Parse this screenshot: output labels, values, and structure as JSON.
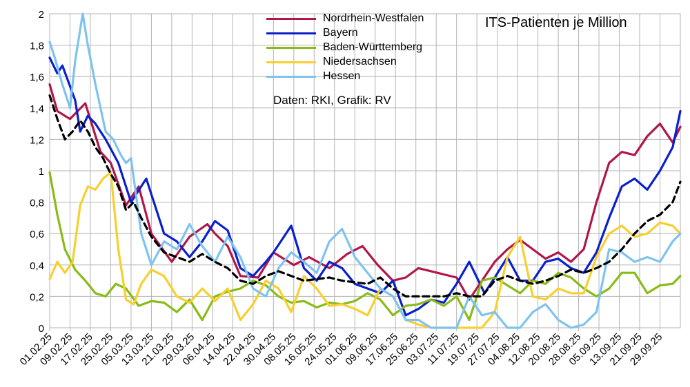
{
  "chart_data": {
    "type": "line",
    "title": "ITS-Patienten je Million",
    "annotation": "Daten: RKI, Grafik: RV",
    "xlabel": "",
    "ylabel": "",
    "ylim": [
      0,
      2
    ],
    "yticks": [
      "0",
      "0,2",
      "0,4",
      "0,6",
      "0,8",
      "1",
      "1,2",
      "1,4",
      "1,6",
      "1,8",
      "2"
    ],
    "xticks": [
      "01.02.25",
      "09.02.25",
      "17.02.25",
      "25.02.25",
      "05.03.25",
      "13.03.25",
      "21.03.25",
      "29.03.25",
      "06.04.25",
      "14.04.25",
      "22.04.25",
      "30.04.25",
      "08.05.25",
      "16.05.25",
      "24.05.25",
      "01.06.25",
      "09.06.25",
      "17.06.25",
      "25.06.25",
      "03.07.25",
      "11.07.25",
      "19.07.25",
      "27.07.25",
      "04.08.25",
      "12.08.25",
      "20.08.25",
      "28.08.25",
      "05.09.25",
      "13.09.25",
      "21.09.25",
      "29.09.25"
    ],
    "grid": true,
    "legend_position": "top-center",
    "series": [
      {
        "name": "Nordrhein-Westfalen",
        "color": "#b0164a",
        "x": [
          0,
          3,
          8,
          14,
          20,
          24,
          30,
          35,
          40,
          48,
          55,
          62,
          65,
          70,
          75,
          82,
          88,
          96,
          102,
          110,
          117,
          123,
          129,
          135,
          140,
          145,
          150,
          155,
          160,
          165,
          170,
          175,
          180,
          185,
          190,
          195,
          200,
          205,
          210,
          215,
          220,
          225,
          230,
          235,
          240,
          245,
          248
        ],
        "values": [
          1.55,
          1.38,
          1.33,
          1.43,
          1.12,
          1.05,
          0.78,
          0.9,
          0.6,
          0.42,
          0.58,
          0.66,
          0.6,
          0.52,
          0.33,
          0.32,
          0.48,
          0.4,
          0.45,
          0.38,
          0.47,
          0.52,
          0.4,
          0.3,
          0.32,
          0.38,
          0.36,
          0.34,
          0.32,
          0.18,
          0.3,
          0.42,
          0.5,
          0.56,
          0.5,
          0.44,
          0.48,
          0.42,
          0.5,
          0.8,
          1.05,
          1.12,
          1.1,
          1.22,
          1.3,
          1.18,
          1.28
        ]
      },
      {
        "name": "Bayern",
        "color": "#0a1fcc",
        "x": [
          0,
          3,
          5,
          10,
          12,
          15,
          18,
          22,
          27,
          32,
          38,
          45,
          50,
          55,
          60,
          65,
          70,
          75,
          80,
          85,
          88,
          95,
          100,
          105,
          110,
          115,
          120,
          125,
          130,
          135,
          140,
          145,
          150,
          155,
          160,
          165,
          168,
          171,
          175,
          180,
          185,
          190,
          195,
          200,
          205,
          210,
          215,
          220,
          225,
          230,
          235,
          240,
          245,
          248
        ],
        "values": [
          1.72,
          1.62,
          1.67,
          1.45,
          1.25,
          1.35,
          1.3,
          1.2,
          1.05,
          0.8,
          0.95,
          0.6,
          0.55,
          0.45,
          0.55,
          0.68,
          0.62,
          0.38,
          0.33,
          0.42,
          0.48,
          0.65,
          0.38,
          0.3,
          0.42,
          0.38,
          0.28,
          0.25,
          0.22,
          0.3,
          0.08,
          0.12,
          0.18,
          0.16,
          0.28,
          0.42,
          0.32,
          0.22,
          0.32,
          0.45,
          0.3,
          0.3,
          0.42,
          0.44,
          0.38,
          0.35,
          0.48,
          0.7,
          0.9,
          0.95,
          0.88,
          1.0,
          1.15,
          1.38
        ]
      },
      {
        "name": "Baden-Württemberg",
        "color": "#88bb16",
        "x": [
          0,
          3,
          6,
          10,
          14,
          18,
          22,
          26,
          30,
          35,
          40,
          45,
          50,
          55,
          60,
          65,
          70,
          75,
          80,
          85,
          90,
          95,
          100,
          105,
          110,
          115,
          120,
          125,
          130,
          135,
          140,
          145,
          150,
          155,
          160,
          165,
          170,
          175,
          180,
          185,
          190,
          195,
          200,
          205,
          210,
          215,
          220,
          225,
          230,
          235,
          240,
          245,
          248
        ],
        "values": [
          0.99,
          0.72,
          0.5,
          0.37,
          0.3,
          0.22,
          0.2,
          0.28,
          0.25,
          0.14,
          0.17,
          0.16,
          0.1,
          0.18,
          0.05,
          0.2,
          0.23,
          0.25,
          0.3,
          0.27,
          0.2,
          0.16,
          0.17,
          0.13,
          0.16,
          0.15,
          0.17,
          0.22,
          0.18,
          0.08,
          0.14,
          0.15,
          0.18,
          0.14,
          0.2,
          0.05,
          0.3,
          0.32,
          0.27,
          0.22,
          0.3,
          0.28,
          0.35,
          0.32,
          0.25,
          0.2,
          0.25,
          0.35,
          0.35,
          0.22,
          0.27,
          0.28,
          0.33
        ]
      },
      {
        "name": "Niedersachsen",
        "color": "#f7cf2e",
        "x": [
          0,
          3,
          6,
          9,
          12,
          15,
          18,
          21,
          24,
          27,
          30,
          33,
          36,
          40,
          45,
          50,
          55,
          60,
          65,
          70,
          75,
          80,
          85,
          90,
          95,
          100,
          105,
          110,
          115,
          120,
          125,
          130,
          135,
          140,
          145,
          150,
          155,
          160,
          165,
          170,
          175,
          180,
          185,
          190,
          195,
          200,
          205,
          210,
          215,
          220,
          225,
          230,
          235,
          240,
          245,
          248
        ],
        "values": [
          0.31,
          0.42,
          0.35,
          0.42,
          0.78,
          0.9,
          0.88,
          0.95,
          0.99,
          0.5,
          0.18,
          0.15,
          0.28,
          0.37,
          0.33,
          0.2,
          0.16,
          0.25,
          0.17,
          0.25,
          0.05,
          0.15,
          0.3,
          0.25,
          0.1,
          0.33,
          0.25,
          0.14,
          0.15,
          0.12,
          0.08,
          0.25,
          0.2,
          0.05,
          0.02,
          0.0,
          0.0,
          0.0,
          0.0,
          0.0,
          0.1,
          0.45,
          0.58,
          0.2,
          0.18,
          0.25,
          0.22,
          0.22,
          0.45,
          0.6,
          0.65,
          0.58,
          0.6,
          0.67,
          0.65,
          0.6
        ]
      },
      {
        "name": "Hessen",
        "color": "#7ec3f0",
        "x": [
          0,
          2,
          5,
          8,
          10,
          13,
          15,
          18,
          20,
          22,
          25,
          28,
          30,
          32,
          36,
          40,
          45,
          50,
          55,
          60,
          65,
          70,
          75,
          80,
          85,
          90,
          95,
          100,
          105,
          110,
          115,
          120,
          125,
          130,
          135,
          140,
          145,
          150,
          155,
          160,
          165,
          170,
          175,
          180,
          185,
          190,
          195,
          200,
          205,
          210,
          215,
          220,
          225,
          230,
          235,
          240,
          245,
          248
        ],
        "values": [
          1.82,
          1.72,
          1.55,
          1.4,
          1.7,
          2.0,
          1.8,
          1.55,
          1.4,
          1.25,
          1.2,
          1.1,
          1.05,
          1.08,
          0.6,
          0.4,
          0.55,
          0.5,
          0.66,
          0.52,
          0.42,
          0.58,
          0.45,
          0.25,
          0.2,
          0.38,
          0.48,
          0.42,
          0.35,
          0.55,
          0.63,
          0.45,
          0.35,
          0.25,
          0.2,
          0.05,
          0.05,
          0.0,
          0.0,
          0.0,
          0.2,
          0.08,
          0.1,
          0.0,
          0.0,
          0.1,
          0.15,
          0.05,
          0.0,
          0.02,
          0.1,
          0.5,
          0.48,
          0.42,
          0.45,
          0.42,
          0.55,
          0.6
        ]
      },
      {
        "name": "",
        "color": "#000000",
        "dashed": true,
        "x": [
          0,
          3,
          6,
          9,
          12,
          15,
          18,
          21,
          24,
          27,
          30,
          33,
          36,
          40,
          45,
          50,
          55,
          60,
          65,
          70,
          75,
          80,
          85,
          90,
          95,
          100,
          105,
          110,
          115,
          120,
          125,
          130,
          135,
          140,
          145,
          150,
          155,
          160,
          165,
          170,
          175,
          180,
          185,
          190,
          195,
          200,
          205,
          210,
          215,
          220,
          225,
          230,
          235,
          240,
          245,
          248
        ],
        "values": [
          1.48,
          1.33,
          1.2,
          1.25,
          1.32,
          1.25,
          1.15,
          1.08,
          0.98,
          0.9,
          0.75,
          0.8,
          0.7,
          0.58,
          0.48,
          0.45,
          0.42,
          0.47,
          0.42,
          0.38,
          0.3,
          0.28,
          0.33,
          0.36,
          0.33,
          0.3,
          0.31,
          0.32,
          0.3,
          0.29,
          0.28,
          0.32,
          0.25,
          0.2,
          0.2,
          0.2,
          0.2,
          0.22,
          0.2,
          0.2,
          0.3,
          0.33,
          0.3,
          0.28,
          0.3,
          0.33,
          0.37,
          0.35,
          0.38,
          0.42,
          0.5,
          0.6,
          0.68,
          0.72,
          0.8,
          0.93
        ]
      }
    ]
  }
}
